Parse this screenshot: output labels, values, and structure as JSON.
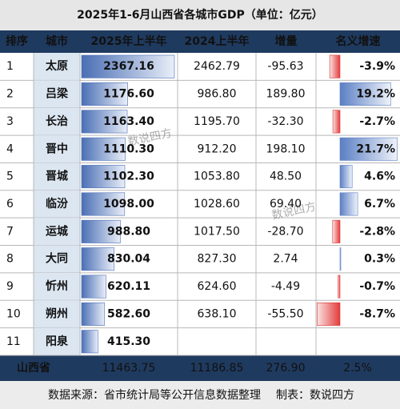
{
  "title": "2025年1-6月山西省各城市GDP（单位：亿元）",
  "table": {
    "header": [
      "排序",
      "城市",
      "2025年上半年",
      "2024上半年",
      "增量",
      "名义增速"
    ],
    "rows": [
      [
        "1",
        "太原",
        "2367.16",
        "2462.79",
        "-95.63",
        "-3.9%"
      ],
      [
        "2",
        "吕梁",
        "1176.60",
        "986.80",
        "189.80",
        "19.2%"
      ],
      [
        "3",
        "长治",
        "1163.40",
        "1195.70",
        "-32.30",
        "-2.7%"
      ],
      [
        "4",
        "晋中",
        "1110.30",
        "912.20",
        "198.10",
        "21.7%"
      ],
      [
        "5",
        "晋城",
        "1102.30",
        "1053.80",
        "48.50",
        "4.6%"
      ],
      [
        "6",
        "临汾",
        "1098.00",
        "1028.60",
        "69.40",
        "6.7%"
      ],
      [
        "7",
        "运城",
        "988.80",
        "1017.50",
        "-28.70",
        "-2.8%"
      ],
      [
        "8",
        "大同",
        "830.04",
        "827.30",
        "2.74",
        "0.3%"
      ],
      [
        "9",
        "忻州",
        "620.11",
        "624.60",
        "-4.49",
        "-0.7%"
      ],
      [
        "10",
        "朔州",
        "582.60",
        "638.10",
        "-55.50",
        "-8.7%"
      ],
      [
        "11",
        "阳泉",
        "415.30",
        null,
        null,
        null
      ]
    ],
    "total": [
      "山西省",
      "11463.75",
      "11186.85",
      "276.90",
      "2.5%"
    ]
  },
  "footer": {
    "source": "数据来源：省市统计局等公开信息数据整理",
    "credit": "制表：数说四方"
  },
  "watermark": "数说四方"
}
